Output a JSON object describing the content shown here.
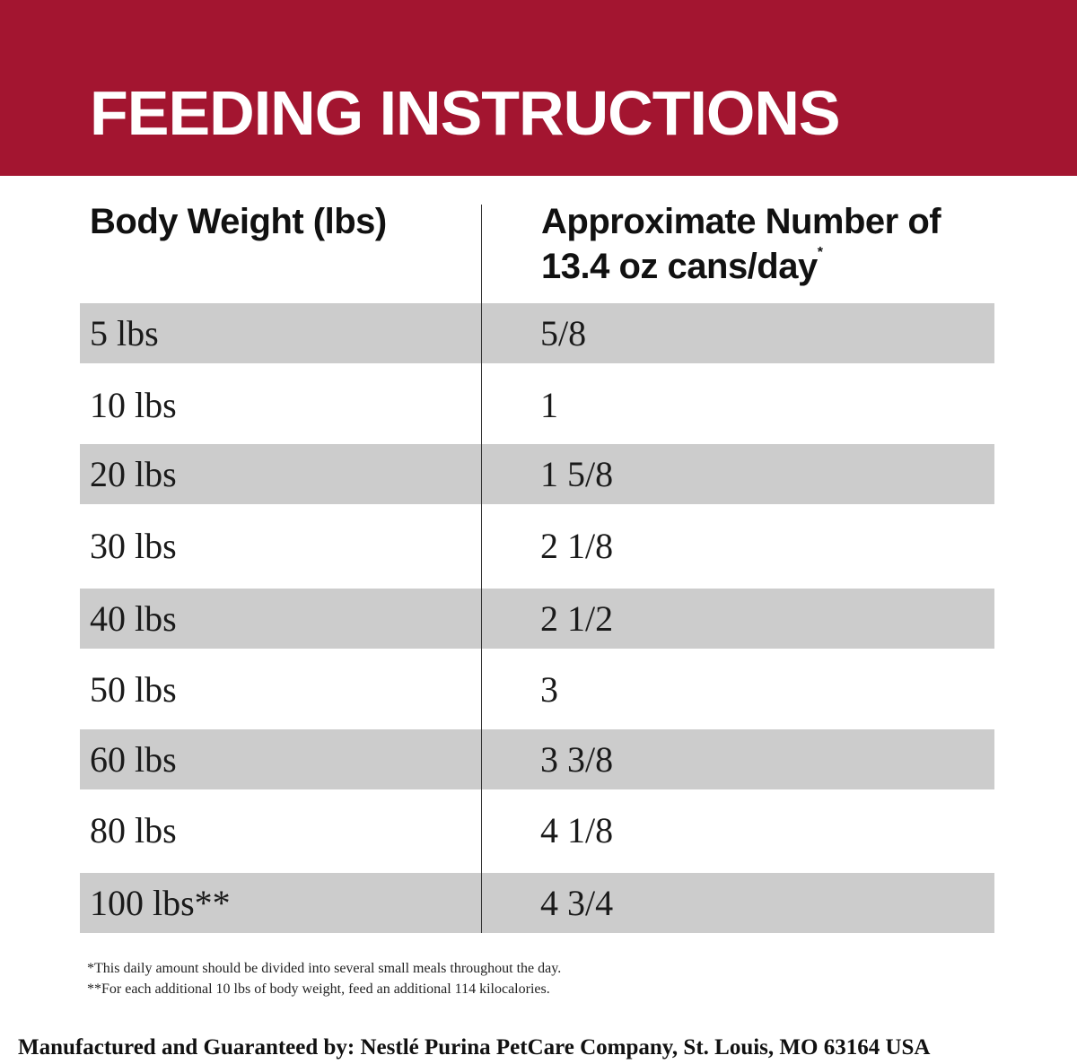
{
  "banner": {
    "title": "FEEDING INSTRUCTIONS"
  },
  "table": {
    "headers": {
      "weight": "Body Weight (lbs)",
      "cans": "Approximate Number of 13.4 oz cans/day",
      "cans_marker": "*"
    },
    "rows": [
      {
        "weight": "5 lbs",
        "cans": "5/8"
      },
      {
        "weight": "10 lbs",
        "cans": "1"
      },
      {
        "weight": "20 lbs",
        "cans": "1 5/8"
      },
      {
        "weight": "30 lbs",
        "cans": "2 1/8"
      },
      {
        "weight": "40 lbs",
        "cans": "2 1/2"
      },
      {
        "weight": "50 lbs",
        "cans": "3"
      },
      {
        "weight": "60 lbs",
        "cans": "3 3/8"
      },
      {
        "weight": "80 lbs",
        "cans": "4 1/8"
      },
      {
        "weight": "100 lbs**",
        "cans": "4 3/4"
      }
    ]
  },
  "footnotes": [
    "*This daily amount should be divided into several small meals throughout the day.",
    "**For each additional 10 lbs of body weight, feed an additional 114 kilocalories."
  ],
  "manufacturer": "Manufactured and Guaranteed by: Nestlé Purina PetCare Company, St. Louis, MO 63164 USA",
  "colors": {
    "banner": "#a31530",
    "row_shade": "#cccccc",
    "text": "#111111"
  }
}
